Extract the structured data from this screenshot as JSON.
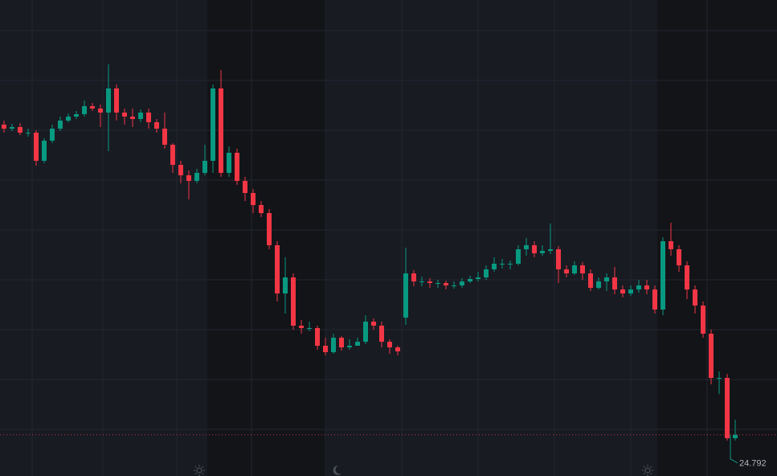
{
  "chart_data": {
    "type": "candlestick",
    "open": [
      28.65,
      28.6,
      28.62,
      28.55,
      28.55,
      28.2,
      28.45,
      28.6,
      28.7,
      28.75,
      28.78,
      28.88,
      28.85,
      28.8,
      29.1,
      28.8,
      28.75,
      28.72,
      28.8,
      28.68,
      28.6,
      28.4,
      28.15,
      28.02,
      27.95,
      28.05,
      28.2,
      29.1,
      28.05,
      28.3,
      27.95,
      27.8,
      27.65,
      27.55,
      27.15,
      26.55,
      26.75,
      26.15,
      26.12,
      26.12,
      25.9,
      25.82,
      26.0,
      25.88,
      25.9,
      25.95,
      26.2,
      26.15,
      25.95,
      25.88,
      26.25,
      26.8,
      26.7,
      26.7,
      26.68,
      26.68,
      26.65,
      26.65,
      26.7,
      26.73,
      26.75,
      26.85,
      26.92,
      26.92,
      26.92,
      27.1,
      27.15,
      27.05,
      27.08,
      27.1,
      26.85,
      26.8,
      26.9,
      26.8,
      26.62,
      26.7,
      26.75,
      26.6,
      26.55,
      26.6,
      26.65,
      26.6,
      26.35,
      27.2,
      27.1,
      26.9,
      26.6,
      26.4,
      26.05,
      25.5,
      25.5,
      24.75
    ],
    "high": [
      28.7,
      28.66,
      28.67,
      28.6,
      28.58,
      28.48,
      28.65,
      28.75,
      28.79,
      28.82,
      28.95,
      28.92,
      28.9,
      29.4,
      29.15,
      28.85,
      28.85,
      28.84,
      28.85,
      28.72,
      28.8,
      28.42,
      28.2,
      28.08,
      28.1,
      28.4,
      29.15,
      29.33,
      28.38,
      28.35,
      28.0,
      27.85,
      27.7,
      27.6,
      27.2,
      27.0,
      26.8,
      26.22,
      26.2,
      26.15,
      26.0,
      26.05,
      26.02,
      25.98,
      26.0,
      26.28,
      26.24,
      26.2,
      25.98,
      25.9,
      27.12,
      26.84,
      26.76,
      26.74,
      26.72,
      26.71,
      26.7,
      26.74,
      26.77,
      26.82,
      26.9,
      27.0,
      26.98,
      26.96,
      27.15,
      27.24,
      27.2,
      27.15,
      27.42,
      27.14,
      26.9,
      26.95,
      26.94,
      26.85,
      26.75,
      26.8,
      26.88,
      26.65,
      26.65,
      26.72,
      26.72,
      26.65,
      27.25,
      27.43,
      27.15,
      26.95,
      26.65,
      26.45,
      26.1,
      25.58,
      25.55,
      24.98
    ],
    "low": [
      28.55,
      28.57,
      28.52,
      28.5,
      28.14,
      28.17,
      28.42,
      28.57,
      28.68,
      28.72,
      28.75,
      28.82,
      28.62,
      28.32,
      28.7,
      28.65,
      28.62,
      28.68,
      28.6,
      28.55,
      28.35,
      28.05,
      27.92,
      27.72,
      27.92,
      28.02,
      28.05,
      28.0,
      28.0,
      27.9,
      27.7,
      27.55,
      27.5,
      27.1,
      26.45,
      26.3,
      26.1,
      26.05,
      26.08,
      25.85,
      25.78,
      25.8,
      25.84,
      25.85,
      25.9,
      25.92,
      26.1,
      25.88,
      25.8,
      25.78,
      26.16,
      26.64,
      26.64,
      26.62,
      26.62,
      26.6,
      26.61,
      26.62,
      26.68,
      26.7,
      26.72,
      26.82,
      26.86,
      26.85,
      26.9,
      27.02,
      27.0,
      27.02,
      27.04,
      26.68,
      26.75,
      26.78,
      26.72,
      26.58,
      26.6,
      26.58,
      26.54,
      26.5,
      26.52,
      26.56,
      26.54,
      26.3,
      26.28,
      27.02,
      26.82,
      26.48,
      26.3,
      26.0,
      25.42,
      25.3,
      24.72,
      24.72
    ],
    "close": [
      28.6,
      28.62,
      28.55,
      28.55,
      28.2,
      28.45,
      28.6,
      28.7,
      28.75,
      28.78,
      28.88,
      28.85,
      28.8,
      29.1,
      28.8,
      28.75,
      28.72,
      28.8,
      28.68,
      28.6,
      28.4,
      28.15,
      28.02,
      27.95,
      28.05,
      28.2,
      29.1,
      28.05,
      28.3,
      27.95,
      27.8,
      27.65,
      27.55,
      27.15,
      26.55,
      26.75,
      26.15,
      26.12,
      26.12,
      25.9,
      25.82,
      26.0,
      25.88,
      25.9,
      25.95,
      26.2,
      26.15,
      25.95,
      25.88,
      25.83,
      26.8,
      26.7,
      26.7,
      26.68,
      26.68,
      26.65,
      26.65,
      26.7,
      26.73,
      26.75,
      26.85,
      26.92,
      26.92,
      26.92,
      27.1,
      27.15,
      27.05,
      27.08,
      27.1,
      26.85,
      26.8,
      26.9,
      26.8,
      26.62,
      26.7,
      26.75,
      26.6,
      26.55,
      26.6,
      26.65,
      26.6,
      26.35,
      27.2,
      27.1,
      26.9,
      26.6,
      26.4,
      26.05,
      25.5,
      25.5,
      24.75,
      24.792
    ],
    "up_color": "#089981",
    "down_color": "#f23645",
    "ylim": [
      24.28,
      30.2
    ],
    "grid": true
  }
}
